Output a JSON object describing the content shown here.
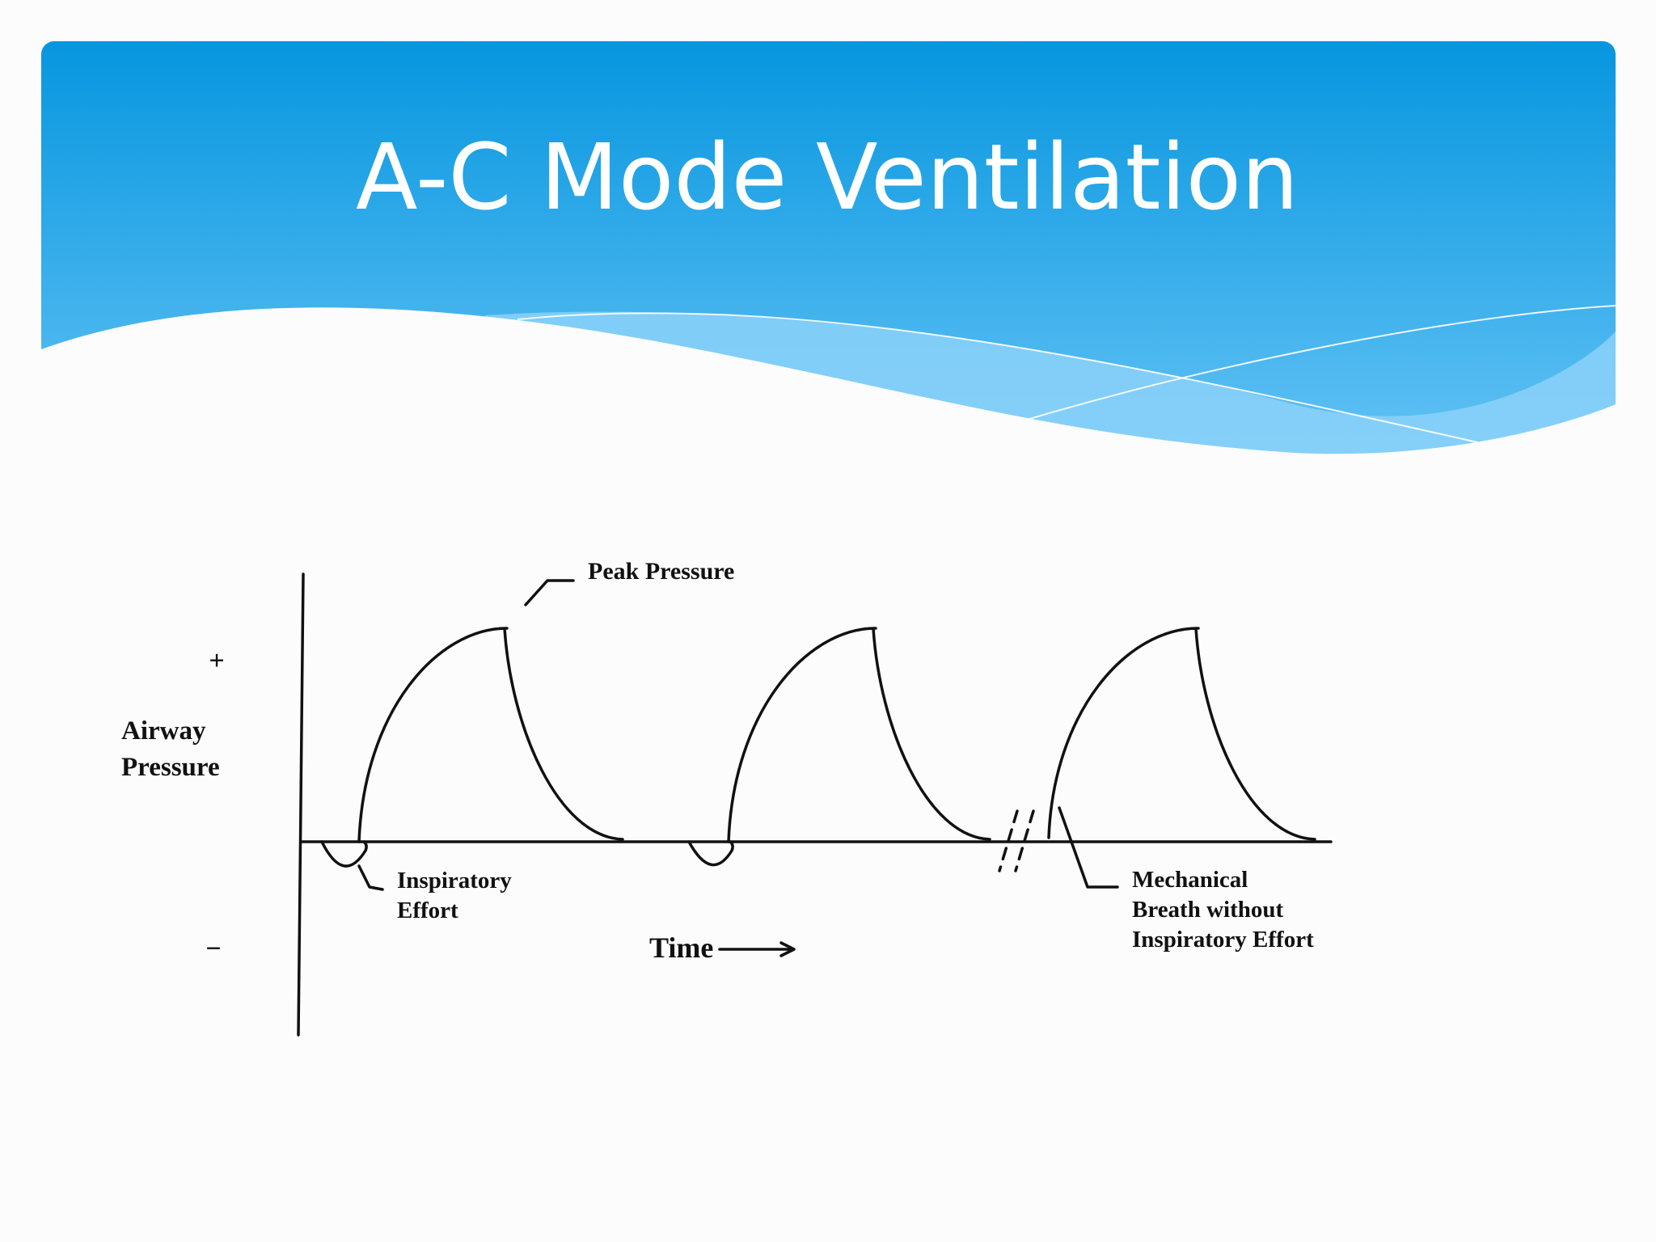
{
  "slide": {
    "title": "A-C Mode Ventilation"
  },
  "diagram": {
    "peak_label": "Peak Pressure",
    "plus_label": "+",
    "minus_label": "−",
    "y_axis_label": [
      "Airway",
      "Pressure"
    ],
    "x_axis_label": "Time",
    "effort_label": [
      "Inspiratory",
      "Effort"
    ],
    "mechanical_label": [
      "Mechanical",
      "Breath without",
      "Inspiratory Effort"
    ]
  }
}
